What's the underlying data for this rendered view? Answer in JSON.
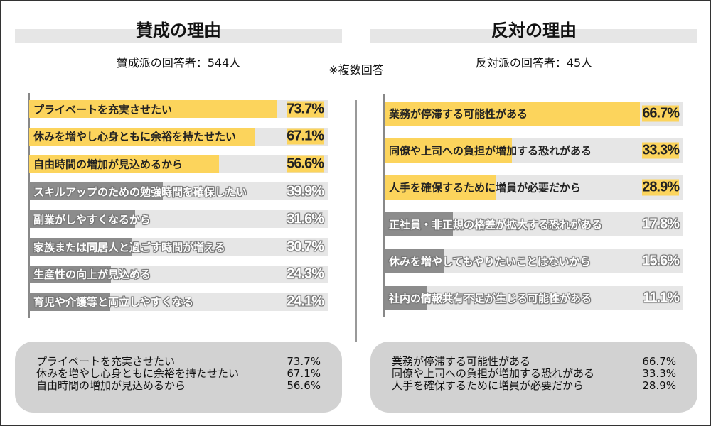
{
  "note": "※複数回答",
  "colors": {
    "highlight": "#fcd45c",
    "muted": "#8c8c8c",
    "track": "#e6e6e6"
  },
  "chart_data": [
    {
      "type": "bar",
      "orientation": "horizontal",
      "title": "賛成の理由",
      "subtitle": "賛成派の回答者：544人",
      "xlim": [
        0,
        89
      ],
      "categories": [
        "プライベートを充実させたい",
        "休みを増やし心身ともに余裕を持たせたい",
        "自由時間の増加が見込めるから",
        "スキルアップのための勉強時間を確保したい",
        "副業がしやすくなるから",
        "家族または同居人と過ごす時間が増える",
        "生産性の向上が見込める",
        "育児や介護等と両立しやすくなる"
      ],
      "values": [
        73.7,
        67.1,
        56.6,
        39.9,
        31.6,
        30.7,
        24.3,
        24.1
      ],
      "labels": [
        "73.7%",
        "67.1%",
        "56.6%",
        "39.9%",
        "31.6%",
        "30.7%",
        "24.3%",
        "24.1%"
      ],
      "highlighted_top": 3
    },
    {
      "type": "bar",
      "orientation": "horizontal",
      "title": "反対の理由",
      "subtitle": "反対派の回答者：45人",
      "xlim": [
        0,
        78
      ],
      "categories": [
        "業務が停滞する可能性がある",
        "同僚や上司への負担が増加する恐れがある",
        "人手を確保するために増員が必要だから",
        "正社員・非正規の格差が拡大する恐れがある",
        "休みを増やしてもやりたいことはないから",
        "社内の情報共有不足が生じる可能性がある"
      ],
      "values": [
        66.7,
        33.3,
        28.9,
        17.8,
        15.6,
        11.1
      ],
      "labels": [
        "66.7%",
        "33.3%",
        "28.9%",
        "17.8%",
        "15.6%",
        "11.1%"
      ],
      "highlighted_top": 3
    }
  ],
  "summaries": [
    [
      {
        "label": "プライベートを充実させたい",
        "value": "73.7%"
      },
      {
        "label": "休みを増やし心身ともに余裕を持たせたい",
        "value": "67.1%"
      },
      {
        "label": "自由時間の増加が見込めるから",
        "value": "56.6%"
      }
    ],
    [
      {
        "label": "業務が停滞する可能性がある",
        "value": "66.7%"
      },
      {
        "label": "同僚や上司への負担が増加する恐れがある",
        "value": "33.3%"
      },
      {
        "label": "人手を確保するために増員が必要だから",
        "value": "28.9%"
      }
    ]
  ]
}
